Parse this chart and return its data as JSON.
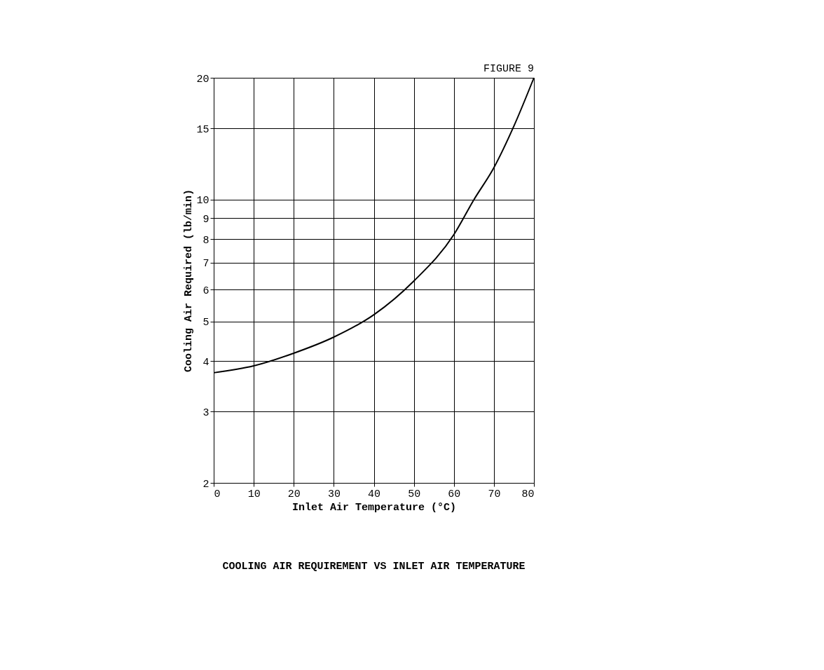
{
  "chart_data": {
    "type": "line",
    "title": "COOLING AIR REQUIREMENT VS INLET AIR TEMPERATURE",
    "annotations": [
      "FIGURE 9"
    ],
    "xlabel": "Inlet Air Temperature (°C)",
    "ylabel": "Cooling Air Required (lb/min)",
    "x": [
      0,
      10,
      20,
      30,
      40,
      50,
      60,
      65,
      70,
      75,
      80
    ],
    "series": [
      {
        "color": "#000000",
        "values": [
          3.74,
          3.89,
          4.18,
          4.58,
          5.2,
          6.3,
          8.2,
          10,
          12,
          15.2,
          20
        ]
      }
    ],
    "xlim": [
      0,
      80
    ],
    "xticks": [
      0,
      10,
      20,
      30,
      40,
      50,
      60,
      70,
      80
    ],
    "ylim": [
      2,
      20
    ],
    "yticks": [
      2,
      3,
      4,
      5,
      6,
      7,
      8,
      9,
      10,
      15,
      20
    ],
    "log": "y",
    "grid": true,
    "marker": "none",
    "line_style": "solid"
  }
}
